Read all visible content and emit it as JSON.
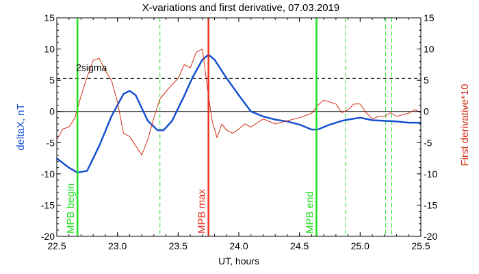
{
  "chart_data": {
    "type": "line",
    "title": "X-variations and first derivative, 07.03.2019",
    "xlabel": "UT, hours",
    "ylabel_left": "deltaX, nT",
    "ylabel_right": "First derivative*10",
    "xlim": [
      22.5,
      25.5
    ],
    "ylim": [
      -20,
      15
    ],
    "xticks": [
      "22.5",
      "23.0",
      "23.5",
      "24.0",
      "24.5",
      "25.0",
      "25.5"
    ],
    "yticks": [
      "-20",
      "-15",
      "-10",
      "-5",
      "0",
      "5",
      "10",
      "15"
    ],
    "colors": {
      "deltaX": "#1450d2",
      "derivative": "#d22d14",
      "mpb_begin_end": "#1ede1e",
      "mpb_max": "#e8321e",
      "dashed": "#1ede1e",
      "text": "#000000"
    },
    "series": [
      {
        "name": "deltaX, nT",
        "key": "deltaX",
        "x": [
          22.5,
          22.6,
          22.67,
          22.75,
          22.85,
          22.95,
          23.05,
          23.1,
          23.15,
          23.25,
          23.33,
          23.38,
          23.45,
          23.55,
          23.62,
          23.7,
          23.75,
          23.8,
          23.9,
          24.0,
          24.1,
          24.2,
          24.3,
          24.4,
          24.5,
          24.6,
          24.65,
          24.75,
          24.85,
          24.9,
          25.0,
          25.1,
          25.2,
          25.3,
          25.4,
          25.5
        ],
        "y": [
          -7.5,
          -9.0,
          -9.8,
          -9.5,
          -5.5,
          -0.8,
          2.8,
          3.3,
          2.6,
          -1.5,
          -3.0,
          -3.0,
          -1.5,
          2.5,
          5.5,
          8.3,
          9.1,
          8.3,
          5.3,
          2.6,
          0.0,
          -0.8,
          -1.3,
          -1.6,
          -2.1,
          -2.9,
          -2.9,
          -2.1,
          -1.5,
          -1.3,
          -1.0,
          -1.4,
          -1.5,
          -1.6,
          -1.8,
          -1.8
        ]
      },
      {
        "name": "First derivative*10",
        "key": "derivative",
        "x": [
          22.5,
          22.55,
          22.6,
          22.65,
          22.7,
          22.75,
          22.8,
          22.85,
          22.9,
          22.95,
          23.0,
          23.05,
          23.1,
          23.15,
          23.2,
          23.25,
          23.3,
          23.35,
          23.4,
          23.45,
          23.5,
          23.55,
          23.6,
          23.65,
          23.7,
          23.72,
          23.75,
          23.78,
          23.82,
          23.86,
          23.9,
          23.95,
          24.0,
          24.05,
          24.1,
          24.2,
          24.3,
          24.4,
          24.5,
          24.6,
          24.65,
          24.7,
          24.75,
          24.8,
          24.85,
          24.9,
          24.95,
          25.0,
          25.05,
          25.1,
          25.15,
          25.2,
          25.25,
          25.3,
          25.35,
          25.4,
          25.45,
          25.5
        ],
        "y": [
          -4.5,
          -2.8,
          -2.5,
          -1.0,
          2.5,
          5.5,
          8.2,
          8.5,
          6.5,
          5.0,
          1.5,
          -3.5,
          -4.0,
          -5.5,
          -7.0,
          -4.5,
          -1.0,
          2.0,
          3.2,
          4.3,
          5.3,
          7.5,
          7.0,
          9.5,
          10.0,
          7.0,
          2.5,
          -1.5,
          -4.2,
          -2.0,
          -3.0,
          -3.5,
          -2.8,
          -2.0,
          -2.5,
          -1.2,
          -2.0,
          -1.5,
          -1.0,
          -0.3,
          1.0,
          1.8,
          1.5,
          1.2,
          -0.2,
          0.3,
          1.2,
          1.2,
          -0.2,
          -1.2,
          -0.8,
          -0.8,
          -0.2,
          -0.8,
          -0.5,
          -0.3,
          0.3,
          -0.2
        ]
      }
    ],
    "threshold": {
      "label": "2sigma",
      "value": 5.3
    },
    "zero_line": 0,
    "markers": [
      {
        "x": 22.67,
        "label": "MPB begin",
        "style": "solid",
        "color_key": "mpb_begin_end"
      },
      {
        "x": 23.75,
        "label": "MPB max",
        "style": "solid",
        "color_key": "mpb_max"
      },
      {
        "x": 24.64,
        "label": "MPB end",
        "style": "solid",
        "color_key": "mpb_begin_end"
      },
      {
        "x": 23.35,
        "label": "",
        "style": "dashed",
        "color_key": "dashed"
      },
      {
        "x": 24.88,
        "label": "",
        "style": "dashed",
        "color_key": "dashed"
      },
      {
        "x": 25.21,
        "label": "",
        "style": "dashed",
        "color_key": "dashed"
      },
      {
        "x": 25.26,
        "label": "",
        "style": "dashed",
        "color_key": "dashed"
      }
    ]
  }
}
